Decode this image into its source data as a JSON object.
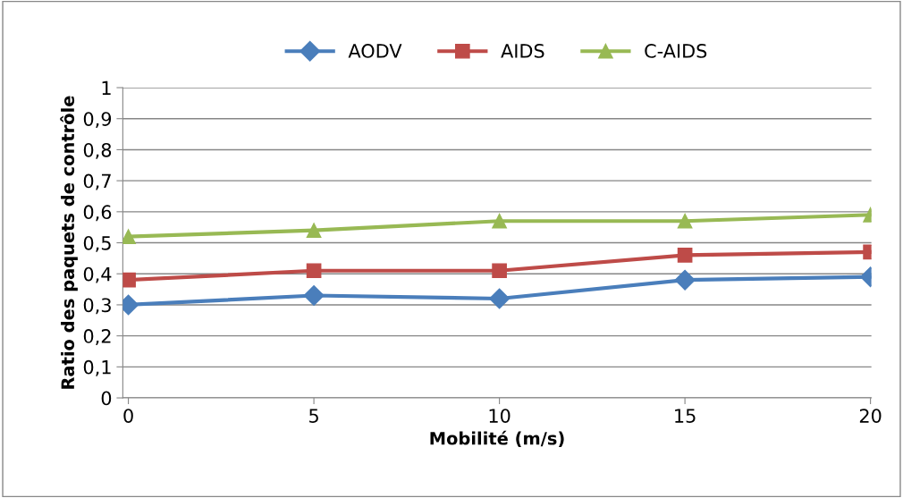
{
  "chart_data": {
    "type": "line",
    "xlabel": "Mobilité (m/s)",
    "ylabel": "Ratio des paquets de contrôle",
    "categories": [
      "0",
      "5",
      "10",
      "15",
      "20"
    ],
    "series": [
      {
        "name": "AODV",
        "color": "#4a7ebb",
        "values": [
          0.3,
          0.33,
          0.32,
          0.38,
          0.39
        ],
        "marker": "diamond"
      },
      {
        "name": "AIDS",
        "color": "#be4b48",
        "values": [
          0.38,
          0.41,
          0.41,
          0.46,
          0.47
        ],
        "marker": "square"
      },
      {
        "name": "C-AIDS",
        "color": "#98b954",
        "values": [
          0.52,
          0.54,
          0.57,
          0.57,
          0.59
        ],
        "marker": "triangle"
      }
    ],
    "ylim": [
      0,
      1
    ],
    "yticks": [
      0,
      {
        "value": 0.1,
        "label": "0,1"
      },
      {
        "value": 0.2,
        "label": "0,2"
      },
      {
        "value": 0.3,
        "label": "0,3"
      },
      {
        "value": 0.4,
        "label": "0,4"
      },
      {
        "value": 0.5,
        "label": "0,5"
      },
      {
        "value": 0.6,
        "label": "0,6"
      },
      {
        "value": 0.7,
        "label": "0,7"
      },
      {
        "value": 0.8,
        "label": "0,8"
      },
      {
        "value": 0.9,
        "label": "0,9"
      },
      1
    ],
    "grid": "y",
    "legend": "top",
    "line_style": "solid"
  }
}
